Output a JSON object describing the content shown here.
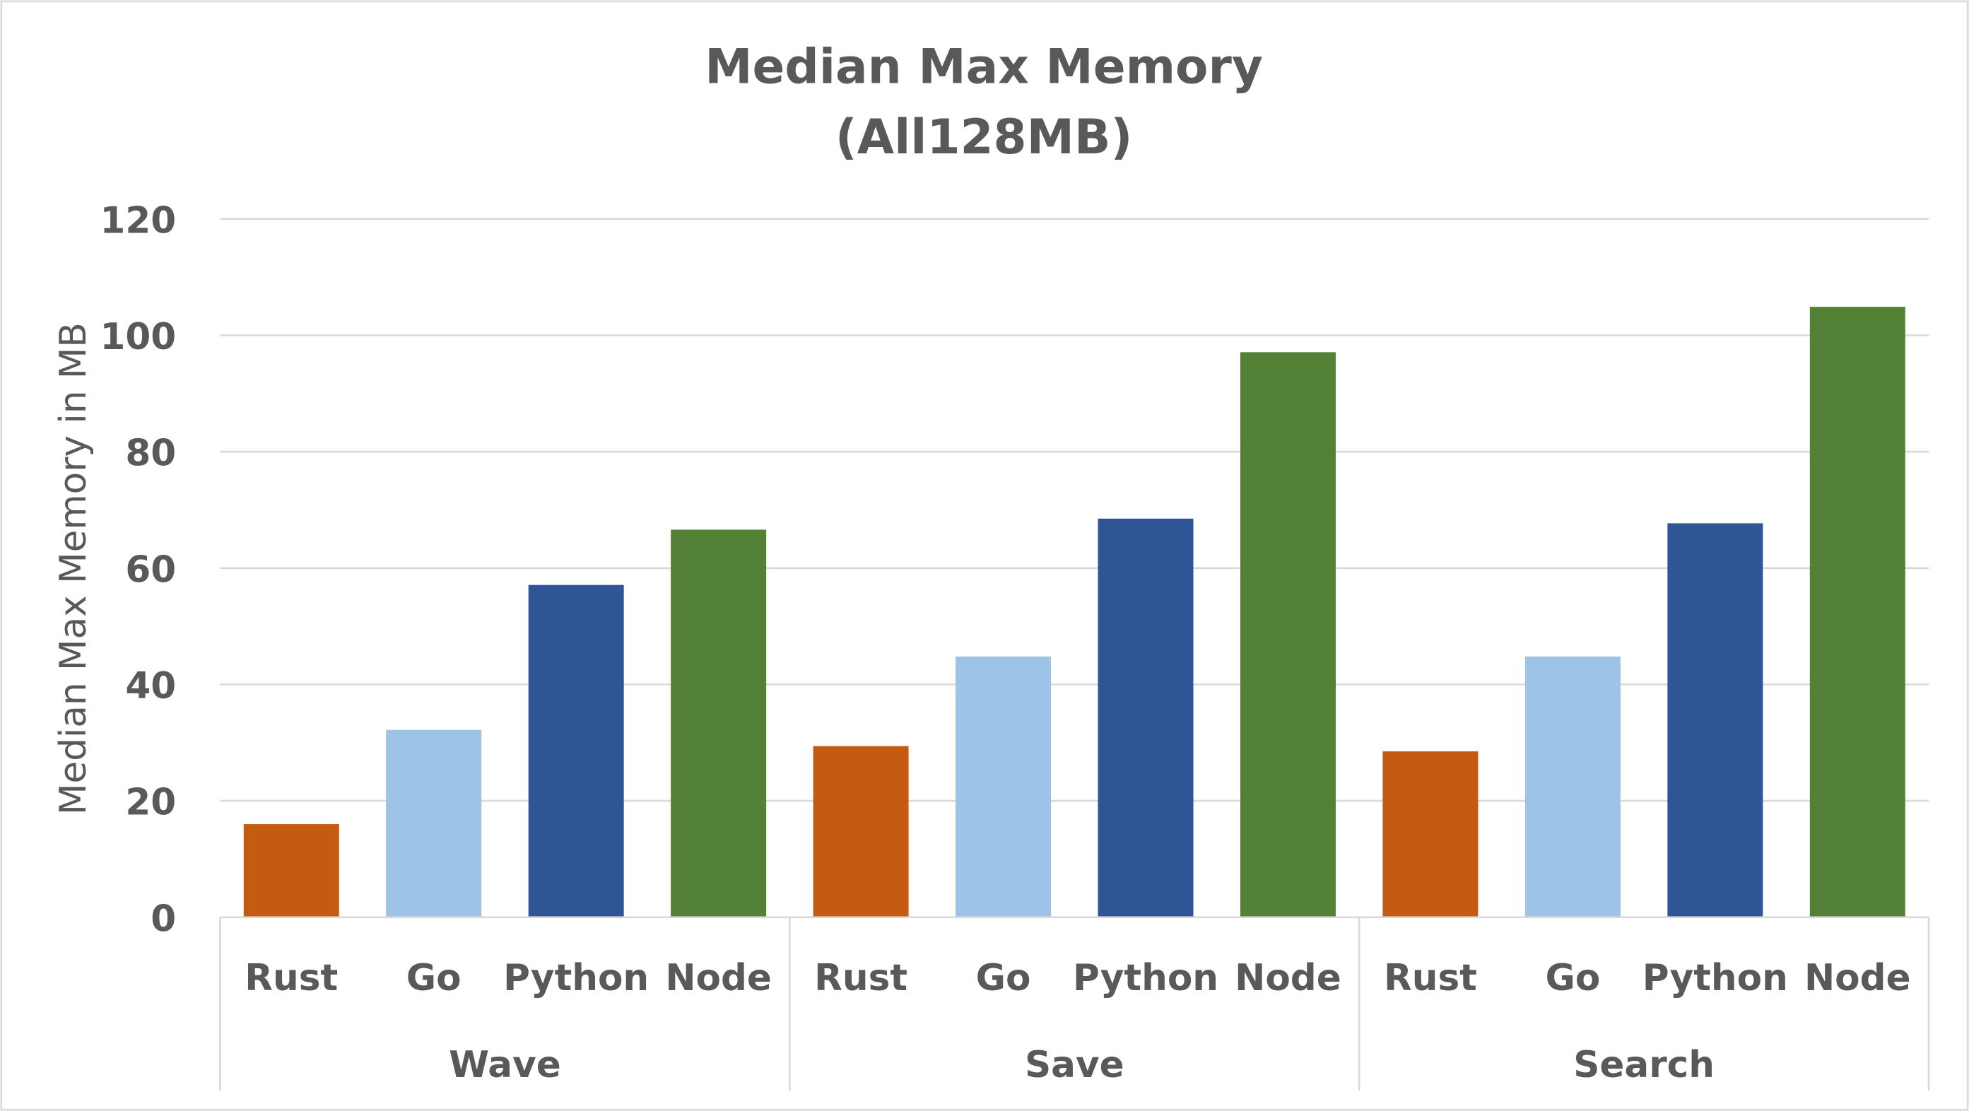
{
  "chart_data": {
    "type": "bar",
    "title": "Median Max Memory",
    "subtitle": "(All128MB)",
    "xlabel": "",
    "ylabel": "Median Max Memory in MB",
    "ylim": [
      0,
      120
    ],
    "yticks": [
      0,
      20,
      40,
      60,
      80,
      100,
      120
    ],
    "grid": true,
    "groups": [
      {
        "name": "Wave",
        "categories": [
          "Rust",
          "Go",
          "Python",
          "Node"
        ],
        "values": [
          16.0,
          32.2,
          57.1,
          66.6
        ]
      },
      {
        "name": "Save",
        "categories": [
          "Rust",
          "Go",
          "Python",
          "Node"
        ],
        "values": [
          29.4,
          44.8,
          68.5,
          97.1
        ]
      },
      {
        "name": "Search",
        "categories": [
          "Rust",
          "Go",
          "Python",
          "Node"
        ],
        "values": [
          28.5,
          44.8,
          67.7,
          104.9
        ]
      }
    ],
    "colors": {
      "Rust": "#C55A11",
      "Go": "#9DC3E6",
      "Python": "#2F5597",
      "Node": "#538135"
    }
  }
}
